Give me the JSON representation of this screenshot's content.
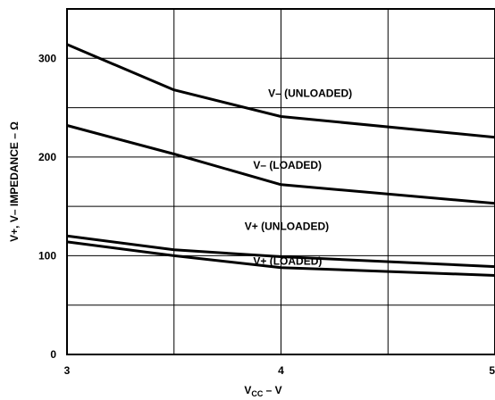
{
  "chart_data": {
    "type": "line",
    "xlabel_main": "V",
    "xlabel_sub": "CC",
    "xlabel_tail": " – V",
    "ylabel": "V+, V– IMPEDANCE – Ω",
    "xlim": [
      3,
      5
    ],
    "ylim": [
      0,
      350
    ],
    "x_ticks": [
      3,
      4,
      5
    ],
    "y_ticks": [
      0,
      100,
      200,
      300
    ],
    "x_grid": [
      3,
      3.5,
      4,
      4.5,
      5
    ],
    "y_grid": [
      0,
      50,
      100,
      150,
      200,
      250,
      300
    ],
    "grid": true,
    "series": [
      {
        "name": "V– (UNLOADED)",
        "x": [
          3,
          3.5,
          4,
          5
        ],
        "y": [
          314,
          268,
          241,
          220
        ]
      },
      {
        "name": "V– (LOADED)",
        "x": [
          3,
          3.5,
          4,
          5
        ],
        "y": [
          232,
          203,
          172,
          153
        ]
      },
      {
        "name": "V+ (UNLOADED)",
        "x": [
          3,
          3.5,
          4,
          5
        ],
        "y": [
          120,
          106,
          99,
          89
        ]
      },
      {
        "name": "V+ (LOADED)",
        "x": [
          3,
          3.5,
          4,
          5
        ],
        "y": [
          114,
          100,
          88,
          80
        ]
      }
    ]
  }
}
